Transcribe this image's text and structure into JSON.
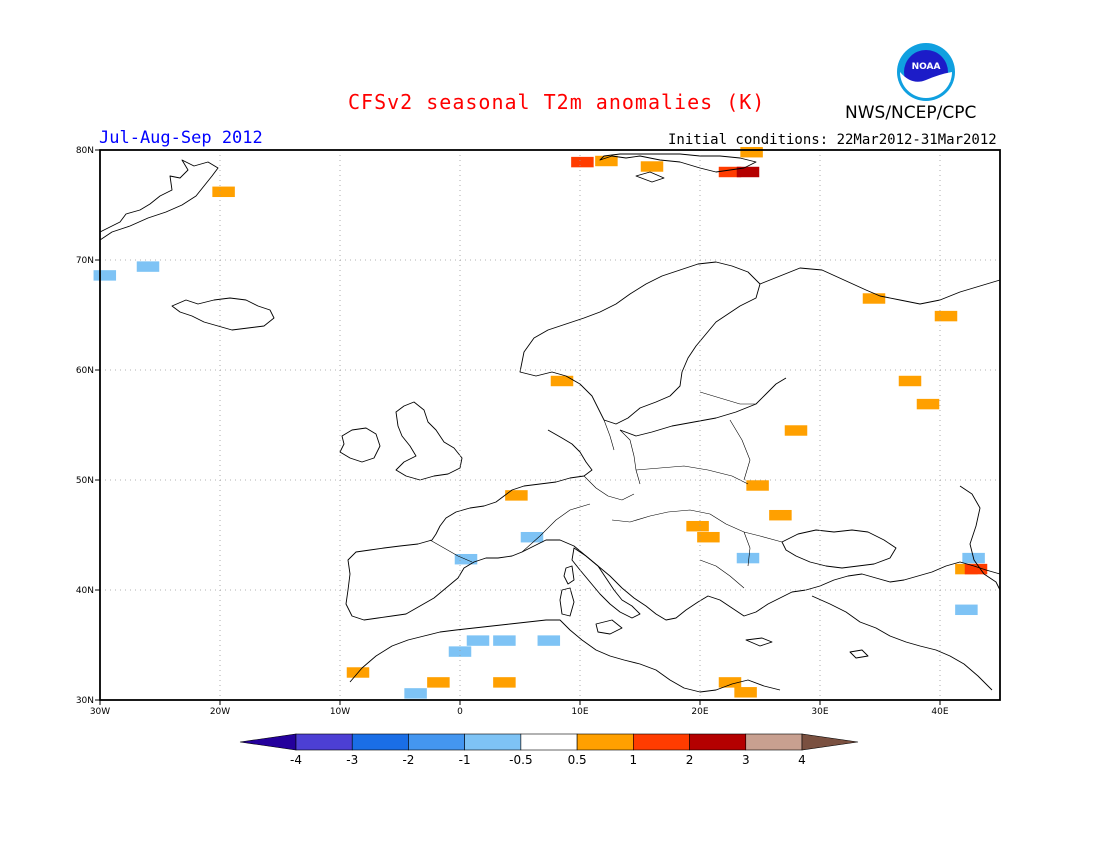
{
  "header": {
    "title": "CFSv2 seasonal T2m anomalies (K)",
    "period": "Jul-Aug-Sep 2012",
    "initial_conditions": "Initial conditions: 22Mar2012-31Mar2012",
    "agency": "NWS/NCEP/CPC",
    "logo_text": "NOAA"
  },
  "map": {
    "lon_range": [
      -30,
      45
    ],
    "lat_range": [
      30,
      80
    ],
    "lon_tick_labels": [
      "30W",
      "20W",
      "10W",
      "0",
      "10E",
      "20E",
      "30E",
      "40E"
    ],
    "lat_tick_labels": [
      "30N",
      "40N",
      "50N",
      "60N",
      "70N",
      "80N"
    ],
    "grid": "dotted",
    "anomaly_cells": [
      {
        "lon": -29.6,
        "lat": 68.6,
        "level": "-1 to -0.5"
      },
      {
        "lon": -26.0,
        "lat": 69.4,
        "level": "-1 to -0.5"
      },
      {
        "lon": -19.7,
        "lat": 76.2,
        "level": "0.5 to 1"
      },
      {
        "lon": 12.2,
        "lat": 79.0,
        "level": "0.5 to 1"
      },
      {
        "lon": 16.0,
        "lat": 78.5,
        "level": "0.5 to 1"
      },
      {
        "lon": 10.2,
        "lat": 78.9,
        "level": "1 to 2"
      },
      {
        "lon": 22.5,
        "lat": 78.0,
        "level": "1 to 2"
      },
      {
        "lon": 24.0,
        "lat": 78.0,
        "level": "2 to 3"
      },
      {
        "lon": 24.3,
        "lat": 79.8,
        "level": "0.5 to 1"
      },
      {
        "lon": 34.5,
        "lat": 66.5,
        "level": "0.5 to 1"
      },
      {
        "lon": 40.5,
        "lat": 64.9,
        "level": "0.5 to 1"
      },
      {
        "lon": 37.5,
        "lat": 59.0,
        "level": "0.5 to 1"
      },
      {
        "lon": 39.0,
        "lat": 56.9,
        "level": "0.5 to 1"
      },
      {
        "lon": 8.5,
        "lat": 59.0,
        "level": "0.5 to 1"
      },
      {
        "lon": 28.0,
        "lat": 54.5,
        "level": "0.5 to 1"
      },
      {
        "lon": 24.8,
        "lat": 49.5,
        "level": "0.5 to 1"
      },
      {
        "lon": 26.7,
        "lat": 46.8,
        "level": "0.5 to 1"
      },
      {
        "lon": 4.7,
        "lat": 48.6,
        "level": "0.5 to 1"
      },
      {
        "lon": 19.8,
        "lat": 45.8,
        "level": "0.5 to 1"
      },
      {
        "lon": 20.7,
        "lat": 44.8,
        "level": "0.5 to 1"
      },
      {
        "lon": 0.5,
        "lat": 42.8,
        "level": "-1 to -0.5"
      },
      {
        "lon": 6.0,
        "lat": 44.8,
        "level": "-1 to -0.5"
      },
      {
        "lon": 24.0,
        "lat": 42.9,
        "level": "-1 to -0.5"
      },
      {
        "lon": 42.8,
        "lat": 42.9,
        "level": "-1 to -0.5"
      },
      {
        "lon": 42.2,
        "lat": 41.9,
        "level": "0.5 to 1"
      },
      {
        "lon": 43.0,
        "lat": 41.9,
        "level": "1 to 2"
      },
      {
        "lon": 42.2,
        "lat": 38.2,
        "level": "-1 to -0.5"
      },
      {
        "lon": 1.5,
        "lat": 35.4,
        "level": "-1 to -0.5"
      },
      {
        "lon": 3.7,
        "lat": 35.4,
        "level": "-1 to -0.5"
      },
      {
        "lon": 7.4,
        "lat": 35.4,
        "level": "-1 to -0.5"
      },
      {
        "lon": 0.0,
        "lat": 34.4,
        "level": "-1 to -0.5"
      },
      {
        "lon": -8.5,
        "lat": 32.5,
        "level": "0.5 to 1"
      },
      {
        "lon": -1.8,
        "lat": 31.6,
        "level": "0.5 to 1"
      },
      {
        "lon": 3.7,
        "lat": 31.6,
        "level": "0.5 to 1"
      },
      {
        "lon": 22.5,
        "lat": 31.6,
        "level": "0.5 to 1"
      },
      {
        "lon": 23.8,
        "lat": 30.7,
        "level": "0.5 to 1"
      },
      {
        "lon": -3.7,
        "lat": 30.6,
        "level": "-1 to -0.5"
      }
    ]
  },
  "colorbar": {
    "labels": [
      "-4",
      "-3",
      "-2",
      "-1",
      "-0.5",
      "0.5",
      "1",
      "2",
      "3",
      "4"
    ],
    "colors": [
      "#24009c",
      "#4c3fd4",
      "#1a6ee6",
      "#4496f0",
      "#7ec3f5",
      "#ffffff",
      "#ffa000",
      "#ff3c00",
      "#b40000",
      "#c8a090",
      "#7a5040"
    ]
  },
  "level_colors": {
    "-1 to -0.5": "#7ec3f5",
    "0.5 to 1": "#ffa000",
    "1 to 2": "#ff3c00",
    "2 to 3": "#b40000"
  }
}
